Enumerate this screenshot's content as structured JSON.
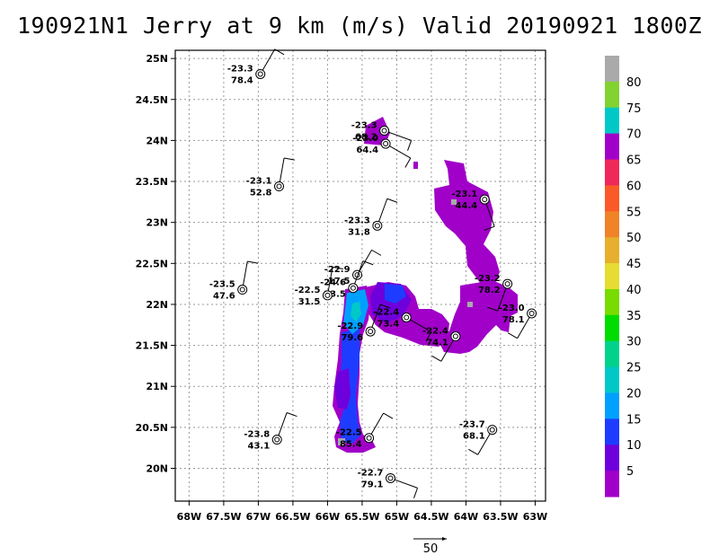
{
  "title": "190921N1 Jerry at 9 km (m/s) Valid 20190921 1800Z",
  "chart_data": {
    "type": "map",
    "title": "190921N1 Jerry at 9 km (m/s) Valid 20190921 1800Z",
    "xlim": [
      -68.2,
      -62.85
    ],
    "ylim": [
      19.6,
      25.1
    ],
    "x_ticks": [
      {
        "value": -68,
        "label": "68W"
      },
      {
        "value": -67.5,
        "label": "67.5W"
      },
      {
        "value": -67,
        "label": "67W"
      },
      {
        "value": -66.5,
        "label": "66.5W"
      },
      {
        "value": -66,
        "label": "66W"
      },
      {
        "value": -65.5,
        "label": "65.5W"
      },
      {
        "value": -65,
        "label": "65W"
      },
      {
        "value": -64.5,
        "label": "64.5W"
      },
      {
        "value": -64,
        "label": "64W"
      },
      {
        "value": -63.5,
        "label": "63.5W"
      },
      {
        "value": -63,
        "label": "63W"
      }
    ],
    "y_ticks": [
      {
        "value": 20,
        "label": "20N"
      },
      {
        "value": 20.5,
        "label": "20.5N"
      },
      {
        "value": 21,
        "label": "21N"
      },
      {
        "value": 21.5,
        "label": "21.5N"
      },
      {
        "value": 22,
        "label": "22N"
      },
      {
        "value": 22.5,
        "label": "22.5N"
      },
      {
        "value": 23,
        "label": "23N"
      },
      {
        "value": 23.5,
        "label": "23.5N"
      },
      {
        "value": 24,
        "label": "24N"
      },
      {
        "value": 24.5,
        "label": "24.5N"
      },
      {
        "value": 25,
        "label": "25N"
      }
    ],
    "grid": true,
    "colorbar": {
      "labels": [
        "5",
        "10",
        "15",
        "20",
        "25",
        "30",
        "35",
        "40",
        "45",
        "50",
        "55",
        "60",
        "65",
        "70",
        "75",
        "80"
      ],
      "colors": [
        "#a000c8",
        "#6e00dc",
        "#1e3cff",
        "#00a0ff",
        "#00c8c8",
        "#00d28c",
        "#00dc00",
        "#78dc00",
        "#e6dc32",
        "#e6af2d",
        "#f08228",
        "#fa5a28",
        "#f0285a",
        "#a000c8",
        "#00c8c8",
        "#82d232",
        "#aaaaaa"
      ]
    },
    "stations": [
      {
        "lon": -66.97,
        "lat": 24.81,
        "temp": "-23.3",
        "wind": "78.4"
      },
      {
        "lon": -66.7,
        "lat": 23.44,
        "temp": "-23.1",
        "wind": "52.8"
      },
      {
        "lon": -65.18,
        "lat": 24.12,
        "temp": "-23.3",
        "wind": "68.2"
      },
      {
        "lon": -65.16,
        "lat": 23.96,
        "temp": "-23.0",
        "wind": "64.4"
      },
      {
        "lon": -65.28,
        "lat": 22.96,
        "temp": "-23.3",
        "wind": "31.8"
      },
      {
        "lon": -63.73,
        "lat": 23.28,
        "temp": "-23.1",
        "wind": "44.4"
      },
      {
        "lon": -67.23,
        "lat": 22.18,
        "temp": "-23.5",
        "wind": "47.6"
      },
      {
        "lon": -65.57,
        "lat": 22.36,
        "temp": "-22.9",
        "wind": "17.5"
      },
      {
        "lon": -65.63,
        "lat": 22.2,
        "temp": "-24.6",
        "wind": "33.5"
      },
      {
        "lon": -66.0,
        "lat": 22.11,
        "temp": "-22.5",
        "wind": "31.5"
      },
      {
        "lon": -63.4,
        "lat": 22.25,
        "temp": "-23.2",
        "wind": "78.2"
      },
      {
        "lon": -63.05,
        "lat": 21.89,
        "temp": "-23.0",
        "wind": "78.1"
      },
      {
        "lon": -64.86,
        "lat": 21.84,
        "temp": "-22.4",
        "wind": "73.4"
      },
      {
        "lon": -65.38,
        "lat": 21.67,
        "temp": "-22.9",
        "wind": "79.6"
      },
      {
        "lon": -64.15,
        "lat": 21.61,
        "temp": "-22.4",
        "wind": "74.1"
      },
      {
        "lon": -66.73,
        "lat": 20.35,
        "temp": "-23.8",
        "wind": "43.1"
      },
      {
        "lon": -65.4,
        "lat": 20.37,
        "temp": "-22.5",
        "wind": "85.4"
      },
      {
        "lon": -63.62,
        "lat": 20.47,
        "temp": "-23.7",
        "wind": "68.1"
      },
      {
        "lon": -65.09,
        "lat": 19.88,
        "temp": "-22.7",
        "wind": "79.1"
      }
    ],
    "reference_vector": {
      "label": "50"
    }
  }
}
